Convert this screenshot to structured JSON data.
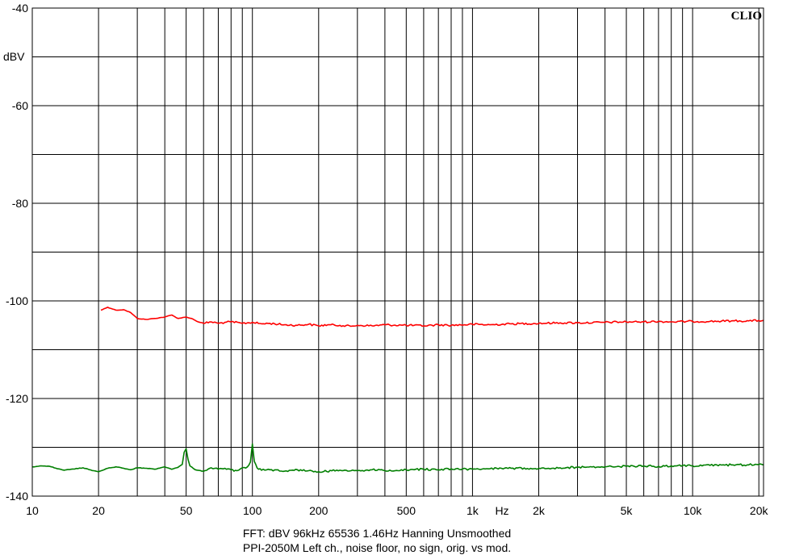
{
  "brand": "CLIO",
  "footer": {
    "line1": "FFT:  dBV  96kHz   65536  1.46Hz  Hanning  Unsmoothed",
    "line2": "PPI-2050M Left ch., noise floor, no sign, orig. vs mod."
  },
  "chart_data": {
    "type": "line",
    "title": "",
    "xlabel": "Hz",
    "ylabel": "dBV",
    "x_scale": "log",
    "xlim": [
      10,
      21000
    ],
    "ylim": [
      -140,
      -40
    ],
    "grid": true,
    "x_tick_labels": [
      {
        "value": 10,
        "label": "10"
      },
      {
        "value": 20,
        "label": "20"
      },
      {
        "value": 50,
        "label": "50"
      },
      {
        "value": 100,
        "label": "100"
      },
      {
        "value": 200,
        "label": "200"
      },
      {
        "value": 500,
        "label": "500"
      },
      {
        "value": 1000,
        "label": "1k"
      },
      {
        "value": 2000,
        "label": "2k"
      },
      {
        "value": 5000,
        "label": "5k"
      },
      {
        "value": 10000,
        "label": "10k"
      },
      {
        "value": 20000,
        "label": "20k"
      }
    ],
    "y_tick_labels": [
      {
        "value": -40,
        "label": "-40"
      },
      {
        "value": -60,
        "label": "-60"
      },
      {
        "value": -80,
        "label": "-80"
      },
      {
        "value": -100,
        "label": "-100"
      },
      {
        "value": -120,
        "label": "-120"
      },
      {
        "value": -140,
        "label": "-140"
      }
    ],
    "series": [
      {
        "color": "#ff0000",
        "x": [
          20.5,
          22,
          24,
          26,
          28,
          30,
          33,
          36,
          40,
          43,
          46,
          50,
          53,
          56,
          60,
          65,
          70,
          75,
          80,
          90,
          100,
          110,
          120,
          140,
          160,
          180,
          200,
          220,
          250,
          280,
          300,
          350,
          400,
          500,
          600,
          700,
          800,
          1000,
          1200,
          1500,
          2000,
          2500,
          3000,
          4000,
          5000,
          6000,
          7000,
          8000,
          10000,
          12000,
          15000,
          18000,
          21000
        ],
        "y": [
          -101.9,
          -101.3,
          -101.9,
          -101.8,
          -102.4,
          -103.6,
          -103.8,
          -103.6,
          -103.3,
          -102.9,
          -103.6,
          -103.3,
          -103.6,
          -104.2,
          -104.6,
          -104.3,
          -104.6,
          -104.4,
          -104.3,
          -104.6,
          -104.4,
          -104.7,
          -104.6,
          -104.9,
          -105.0,
          -104.8,
          -105.1,
          -104.9,
          -105.0,
          -105.2,
          -105.0,
          -105.1,
          -104.9,
          -105.0,
          -105.1,
          -104.9,
          -105.0,
          -104.8,
          -104.9,
          -104.7,
          -104.6,
          -104.5,
          -104.5,
          -104.4,
          -104.3,
          -104.3,
          -104.2,
          -104.3,
          -104.2,
          -104.2,
          -104.1,
          -104.1,
          -104.0
        ]
      },
      {
        "color": "#007f00",
        "x": [
          10,
          11,
          12,
          13,
          14,
          15,
          17,
          19,
          20,
          22,
          24,
          26,
          28,
          30,
          33,
          36,
          40,
          43,
          46,
          48,
          49,
          50,
          51,
          52,
          55,
          60,
          65,
          70,
          75,
          80,
          85,
          90,
          95,
          98,
          100,
          102,
          105,
          110,
          120,
          140,
          160,
          180,
          200,
          250,
          300,
          350,
          400,
          500,
          600,
          700,
          800,
          1000,
          1200,
          1500,
          2000,
          2500,
          3000,
          4000,
          5000,
          6000,
          7000,
          8000,
          10000,
          12000,
          15000,
          18000,
          20000,
          21000
        ],
        "y": [
          -134.0,
          -133.8,
          -133.9,
          -134.4,
          -134.7,
          -134.5,
          -134.2,
          -134.8,
          -135.0,
          -134.3,
          -134.0,
          -134.3,
          -134.6,
          -134.2,
          -134.3,
          -134.5,
          -134.0,
          -134.5,
          -134.1,
          -133.5,
          -131.0,
          -130.3,
          -132.5,
          -133.8,
          -134.6,
          -134.9,
          -134.2,
          -134.5,
          -134.3,
          -134.6,
          -134.8,
          -134.2,
          -134.0,
          -133.0,
          -129.3,
          -132.9,
          -134.2,
          -134.7,
          -134.6,
          -134.9,
          -134.6,
          -134.8,
          -135.0,
          -134.7,
          -134.8,
          -134.6,
          -134.8,
          -134.6,
          -134.5,
          -134.6,
          -134.4,
          -134.5,
          -134.4,
          -134.3,
          -134.3,
          -134.2,
          -134.1,
          -134.0,
          -133.9,
          -133.8,
          -133.9,
          -133.8,
          -133.8,
          -133.7,
          -133.6,
          -133.6,
          -133.5,
          -133.6
        ]
      }
    ]
  }
}
